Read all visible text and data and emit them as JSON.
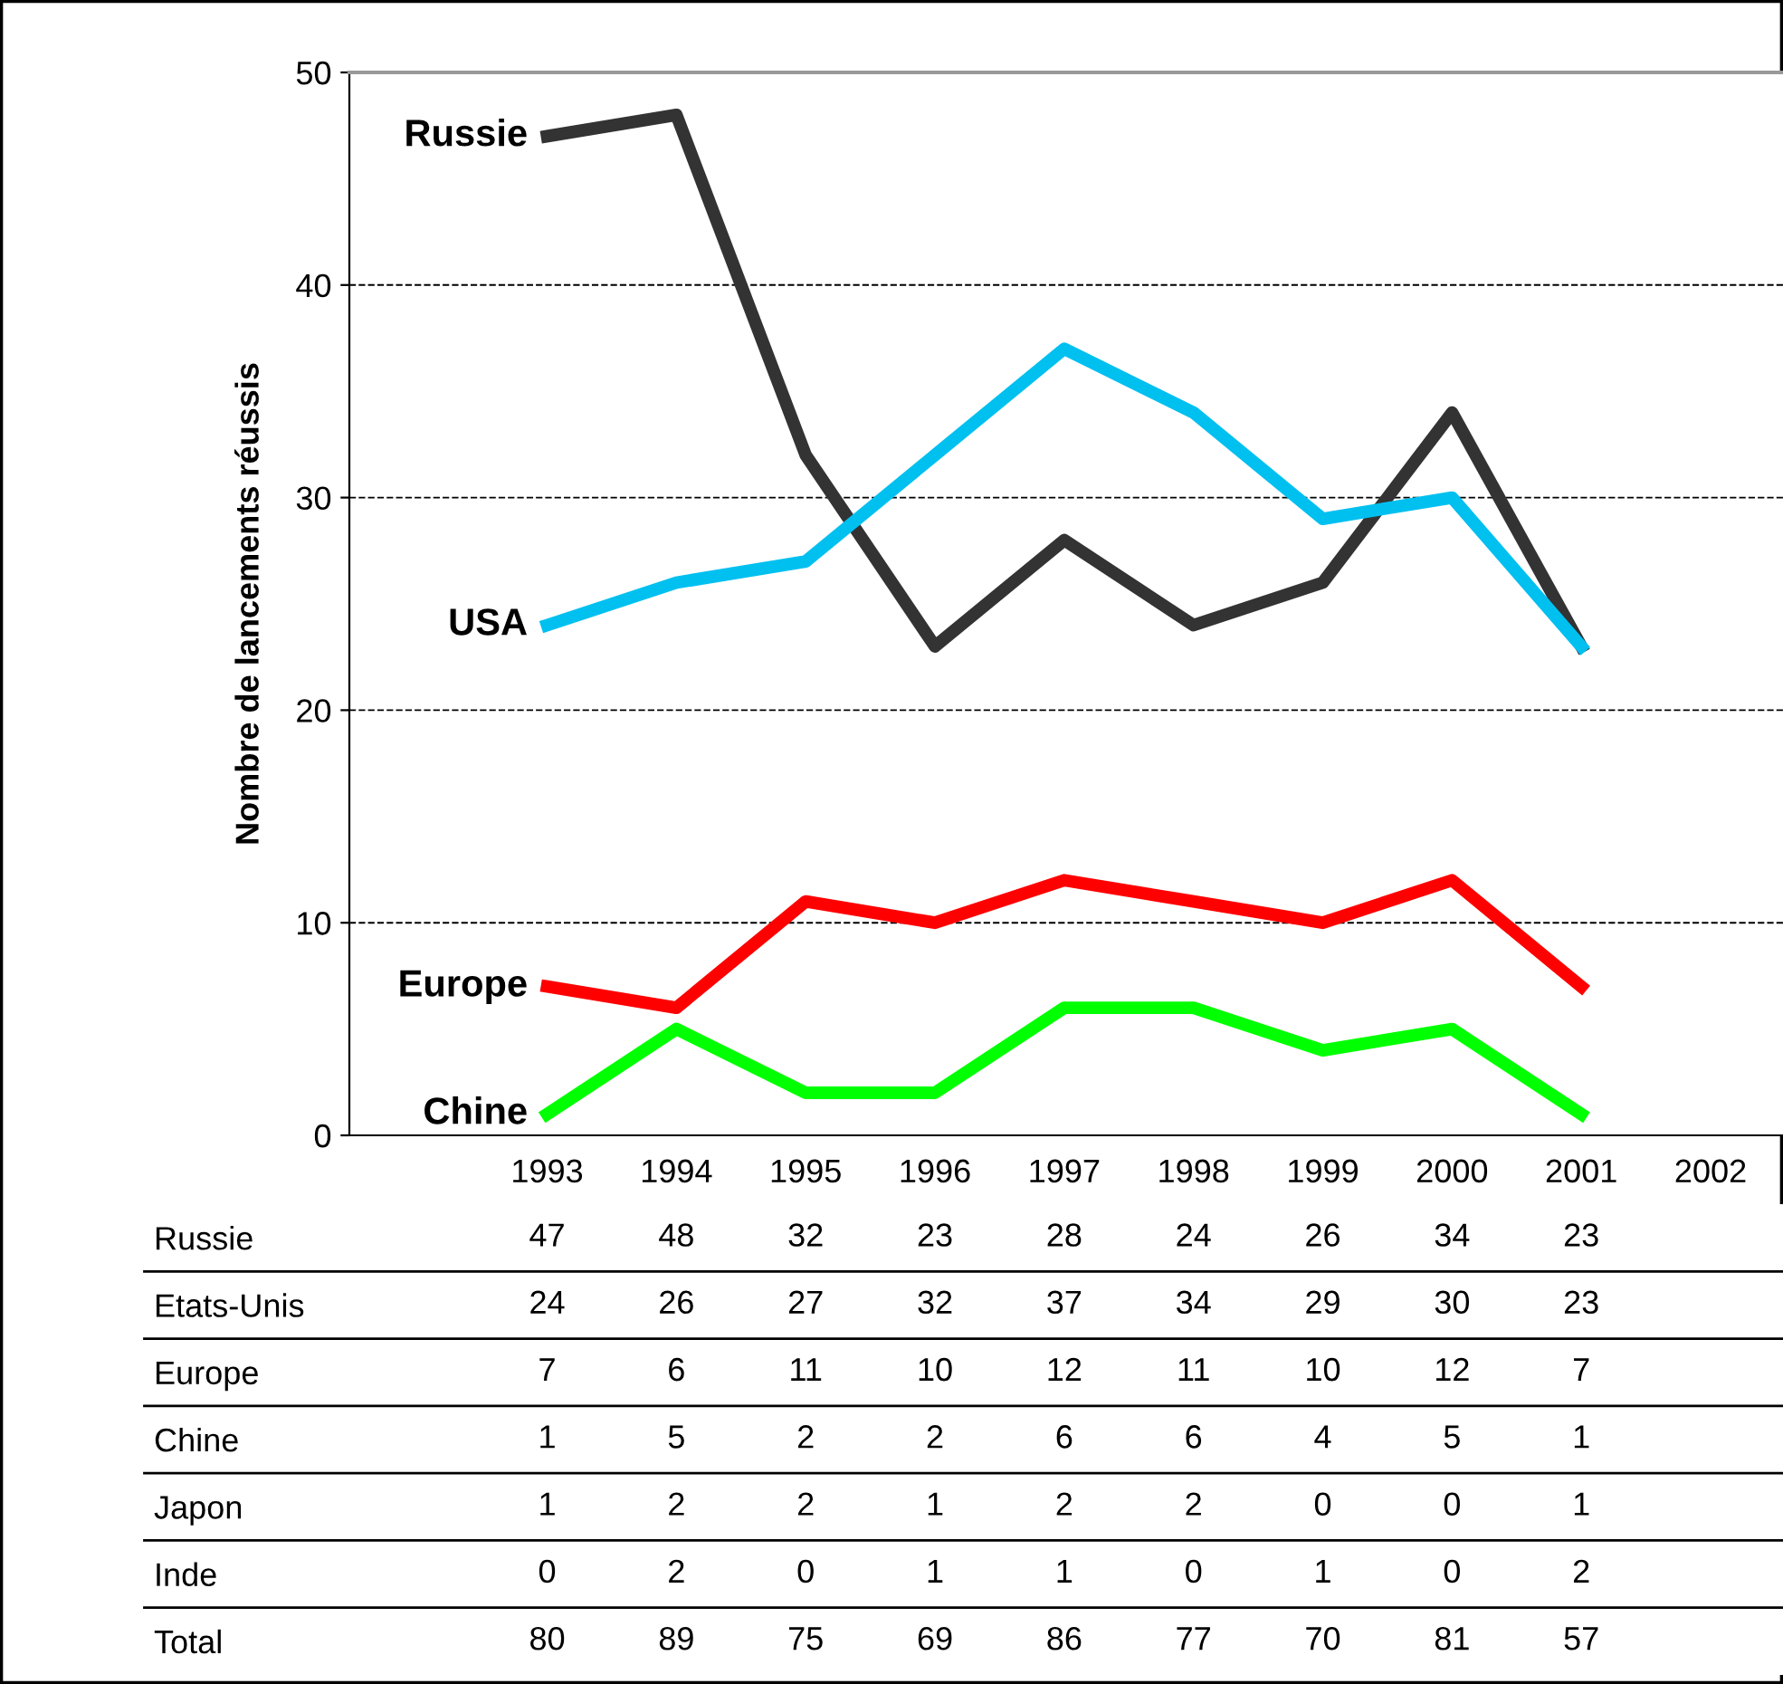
{
  "chart_data": [
    {
      "type": "line",
      "ylabel": "Nombre de lancements réussis",
      "categories": [
        "1993",
        "1994",
        "1995",
        "1996",
        "1997",
        "1998",
        "1999",
        "2000",
        "2001",
        "2002"
      ],
      "ylim": [
        0,
        50
      ],
      "yticks": [
        0,
        10,
        20,
        30,
        40,
        50
      ],
      "grid": "y",
      "tick_labels": "y",
      "legend": false,
      "marker": "none",
      "series": [
        {
          "name": "Russie",
          "color": "#333333",
          "values": [
            47,
            48,
            32,
            23,
            28,
            24,
            26,
            34,
            23,
            null
          ]
        },
        {
          "name": "USA",
          "color": "#00c0f0",
          "values": [
            24,
            26,
            27,
            32,
            37,
            34,
            29,
            30,
            23,
            null
          ]
        },
        {
          "name": "Europe",
          "color": "#ff0000",
          "values": [
            7,
            6,
            11,
            10,
            12,
            11,
            10,
            12,
            7,
            null
          ]
        },
        {
          "name": "Chine",
          "color": "#00ff00",
          "values": [
            1,
            5,
            2,
            2,
            6,
            6,
            4,
            5,
            1,
            null
          ]
        }
      ]
    },
    {
      "type": "heatmap",
      "categories": [
        "1993",
        "1994",
        "1995",
        "1996",
        "1997",
        "1998",
        "1999",
        "2000",
        "2001",
        "2002"
      ],
      "y_categories": [
        "Russie",
        "Etats-Unis",
        "Europe",
        "Chine",
        "Japon",
        "Inde",
        "Total"
      ],
      "data_labels": true,
      "color": "#ffffff",
      "cells": [
        [
          47,
          48,
          32,
          23,
          28,
          24,
          26,
          34,
          23,
          null
        ],
        [
          24,
          26,
          27,
          32,
          37,
          34,
          29,
          30,
          23,
          null
        ],
        [
          7,
          6,
          11,
          10,
          12,
          11,
          10,
          12,
          7,
          null
        ],
        [
          1,
          5,
          2,
          2,
          6,
          6,
          4,
          5,
          1,
          null
        ],
        [
          1,
          2,
          2,
          1,
          2,
          2,
          0,
          0,
          1,
          null
        ],
        [
          0,
          2,
          0,
          1,
          1,
          0,
          1,
          0,
          2,
          null
        ],
        [
          80,
          89,
          75,
          69,
          86,
          77,
          70,
          81,
          57,
          null
        ]
      ]
    }
  ]
}
